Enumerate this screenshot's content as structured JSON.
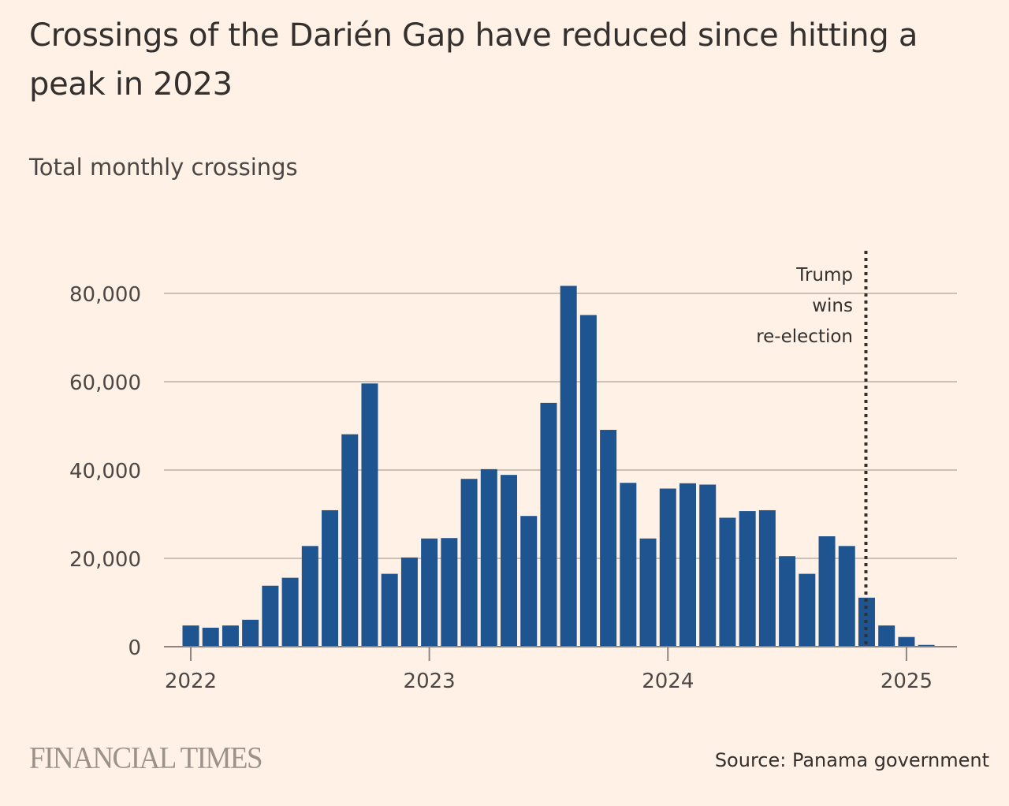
{
  "header": {
    "title": "Crossings of the Darién Gap have reduced since hitting a peak in 2023",
    "subtitle": "Total monthly crossings"
  },
  "footer": {
    "logo": "FINANCIAL TIMES",
    "source": "Source: Panama government"
  },
  "colors": {
    "background": "#fff1e5",
    "bar": "#1e5590",
    "gridline": "#ccc1b7",
    "axis": "#8f8580",
    "annotation_line": "#33302e"
  },
  "chart_data": {
    "type": "bar",
    "title": "Crossings of the Darién Gap have reduced since hitting a peak in 2023",
    "subtitle": "Total monthly crossings",
    "xlabel": "",
    "ylabel": "Total monthly crossings",
    "ylim": [
      0,
      90000
    ],
    "yticks": [
      0,
      20000,
      40000,
      60000,
      80000
    ],
    "ytick_labels": [
      "0",
      "20,000",
      "40,000",
      "60,000",
      "80,000"
    ],
    "xtick_labels": [
      "2022",
      "2023",
      "2024",
      "2025"
    ],
    "xtick_categories": [
      "Jan 2022",
      "Jan 2023",
      "Jan 2024",
      "Jan 2025"
    ],
    "grid": true,
    "legend": "none",
    "categories": [
      "Jan 2022",
      "Feb 2022",
      "Mar 2022",
      "Apr 2022",
      "May 2022",
      "Jun 2022",
      "Jul 2022",
      "Aug 2022",
      "Sep 2022",
      "Oct 2022",
      "Nov 2022",
      "Dec 2022",
      "Jan 2023",
      "Feb 2023",
      "Mar 2023",
      "Apr 2023",
      "May 2023",
      "Jun 2023",
      "Jul 2023",
      "Aug 2023",
      "Sep 2023",
      "Oct 2023",
      "Nov 2023",
      "Dec 2023",
      "Jan 2024",
      "Feb 2024",
      "Mar 2024",
      "Apr 2024",
      "May 2024",
      "Jun 2024",
      "Jul 2024",
      "Aug 2024",
      "Sep 2024",
      "Oct 2024",
      "Nov 2024",
      "Dec 2024",
      "Jan 2025",
      "Feb 2025"
    ],
    "values": [
      4800,
      4300,
      4800,
      6100,
      13800,
      15600,
      22800,
      30900,
      48100,
      59600,
      16500,
      20200,
      24500,
      24600,
      38000,
      40200,
      38900,
      29600,
      55200,
      81700,
      75100,
      49100,
      37100,
      24500,
      35800,
      37000,
      36700,
      29200,
      30700,
      30900,
      20500,
      16500,
      25000,
      22800,
      11100,
      4800,
      2200,
      400
    ],
    "annotations": [
      {
        "type": "vertical-dotted-line",
        "at_category": "Nov 2024",
        "label_lines": [
          "Trump",
          "wins",
          "re-election"
        ]
      }
    ]
  }
}
